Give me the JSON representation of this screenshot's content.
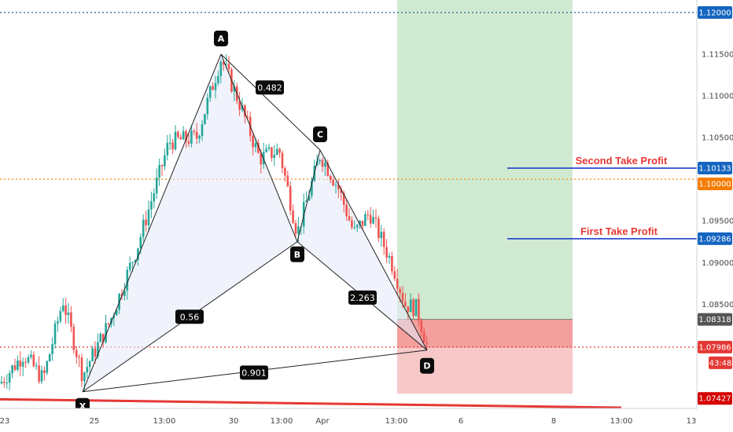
{
  "chart_data": {
    "type": "candlestick",
    "instrument_pattern": "harmonic XABCD",
    "ylim": [
      1.0725,
      1.1215
    ],
    "x_axis_ticks": [
      "23",
      "25",
      "13:00",
      "30",
      "13:00",
      "Apr",
      "13:00",
      "6",
      "8",
      "13:00",
      "13"
    ],
    "y_axis_ticks": [
      "1.11500",
      "1.11000",
      "1.10500",
      "1.09500",
      "1.09000",
      "1.08500"
    ],
    "price_tags": [
      {
        "value": "1.12000",
        "color": "#1565c0"
      },
      {
        "value": "1.10133",
        "color": "#1565c0"
      },
      {
        "value": "1.10000",
        "color": "#f57c00"
      },
      {
        "value": "1.09286",
        "color": "#1565c0"
      },
      {
        "value": "1.08318",
        "color": "#555555"
      },
      {
        "value": "1.07986",
        "color": "#e53935"
      },
      {
        "value": "43:48",
        "color": "#e53935"
      },
      {
        "value": "1.07427",
        "color": "#d50000"
      }
    ],
    "pattern_points": [
      {
        "label": "X",
        "price": 1.0745
      },
      {
        "label": "A",
        "price": 1.115
      },
      {
        "label": "B",
        "price": 1.0925
      },
      {
        "label": "C",
        "price": 1.1035
      },
      {
        "label": "D",
        "price": 1.0795
      }
    ],
    "ratios": [
      "0.482",
      "0.56",
      "2.263",
      "0.901"
    ],
    "take_profits": [
      {
        "label": "Second Take Profit",
        "price": 1.10133
      },
      {
        "label": "First Take Profit",
        "price": 1.09286
      }
    ],
    "entry_price": 1.08318,
    "stop_loss": 1.07427,
    "target_zone_top": 1.1215,
    "horizontal_levels": [
      {
        "price": 1.12,
        "color": "#0d47a1",
        "style": "dotted"
      },
      {
        "price": 1.1,
        "color": "#f57c00",
        "style": "dotted"
      },
      {
        "price": 1.07986,
        "color": "#e53935",
        "style": "dotted"
      }
    ],
    "trendline_color": "#e53935",
    "candle_up_color": "#26a69a",
    "candle_down_color": "#ef5350",
    "grid": false
  }
}
